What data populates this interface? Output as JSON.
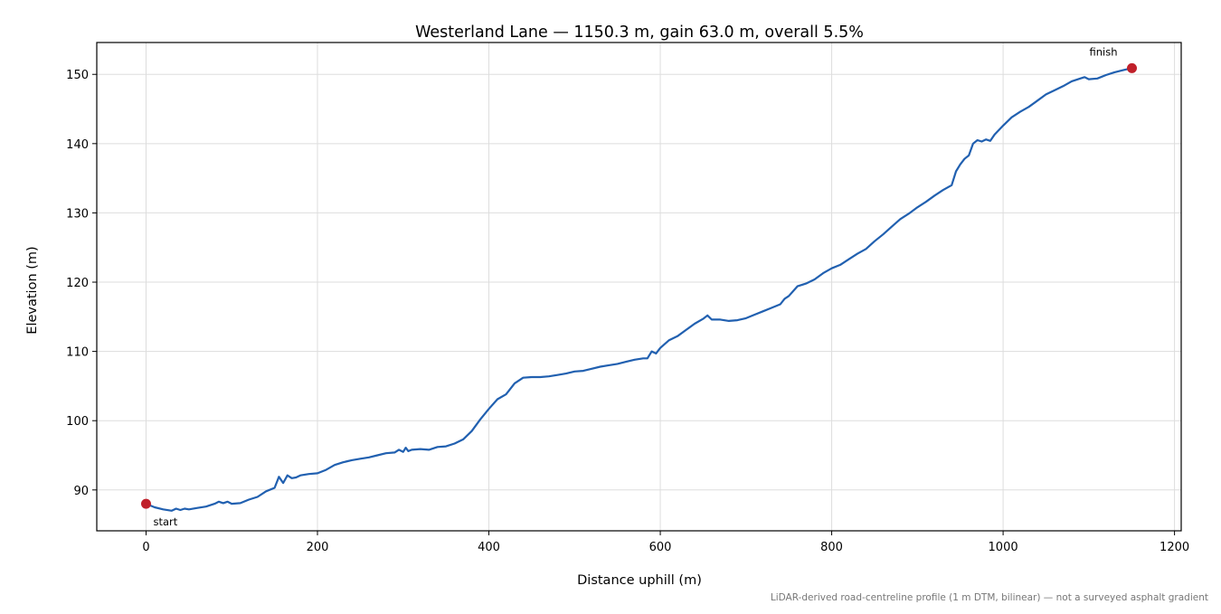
{
  "chart_data": {
    "type": "line",
    "title": "Westerland Lane — 1150.3 m, gain 63.0 m, overall 5.5%",
    "xlabel": "Distance uphill (m)",
    "ylabel": "Elevation (m)",
    "footnote": "LiDAR-derived road-centreline profile (1 m DTM, bilinear) — not a surveyed asphalt gradient",
    "xlim": [
      -57.5,
      1207.8
    ],
    "ylim": [
      84.1,
      154.6
    ],
    "xticks": [
      0,
      200,
      400,
      600,
      800,
      1000,
      1200
    ],
    "yticks": [
      90,
      100,
      110,
      120,
      130,
      140,
      150
    ],
    "xtick_labels": [
      "0",
      "200",
      "400",
      "600",
      "800",
      "1000",
      "1200"
    ],
    "ytick_labels": [
      "90",
      "100",
      "110",
      "120",
      "130",
      "140",
      "150"
    ],
    "grid": true,
    "line_color": "#2160b0",
    "marker_color": "#c0202a",
    "series": [
      {
        "x": [
          0,
          10,
          20,
          30,
          35,
          40,
          45,
          50,
          60,
          70,
          80,
          85,
          90,
          95,
          100,
          110,
          120,
          130,
          140,
          150,
          155,
          160,
          165,
          170,
          175,
          180,
          190,
          200,
          210,
          220,
          230,
          240,
          250,
          260,
          270,
          280,
          290,
          295,
          300,
          303,
          306,
          310,
          320,
          330,
          340,
          350,
          360,
          370,
          380,
          390,
          400,
          410,
          420,
          430,
          440,
          450,
          460,
          470,
          480,
          490,
          500,
          510,
          520,
          530,
          540,
          550,
          560,
          570,
          580,
          585,
          590,
          595,
          600,
          610,
          620,
          630,
          640,
          650,
          655,
          660,
          670,
          680,
          690,
          700,
          710,
          720,
          730,
          740,
          745,
          750,
          755,
          760,
          770,
          780,
          790,
          800,
          810,
          820,
          830,
          840,
          850,
          860,
          870,
          880,
          890,
          900,
          910,
          920,
          930,
          940,
          945,
          950,
          955,
          960,
          965,
          970,
          975,
          980,
          985,
          990,
          1000,
          1010,
          1020,
          1030,
          1040,
          1050,
          1060,
          1070,
          1080,
          1090,
          1095,
          1100,
          1110,
          1120,
          1130,
          1140,
          1150.3
        ],
        "y": [
          88.0,
          87.5,
          87.2,
          87.0,
          87.3,
          87.1,
          87.3,
          87.2,
          87.4,
          87.6,
          88.0,
          88.3,
          88.1,
          88.3,
          88.0,
          88.1,
          88.6,
          89.0,
          89.8,
          90.3,
          91.9,
          91.0,
          92.1,
          91.7,
          91.8,
          92.1,
          92.3,
          92.4,
          92.9,
          93.6,
          94.0,
          94.3,
          94.5,
          94.7,
          95.0,
          95.3,
          95.4,
          95.8,
          95.5,
          96.1,
          95.6,
          95.8,
          95.9,
          95.8,
          96.2,
          96.3,
          96.7,
          97.3,
          98.5,
          100.2,
          101.7,
          103.1,
          103.8,
          105.4,
          106.2,
          106.3,
          106.3,
          106.4,
          106.6,
          106.8,
          107.1,
          107.2,
          107.5,
          107.8,
          108.0,
          108.2,
          108.5,
          108.8,
          109.0,
          109.0,
          110.0,
          109.7,
          110.5,
          111.6,
          112.2,
          113.1,
          114.0,
          114.7,
          115.2,
          114.6,
          114.6,
          114.4,
          114.5,
          114.8,
          115.3,
          115.8,
          116.3,
          116.8,
          117.6,
          118.0,
          118.7,
          119.4,
          119.8,
          120.4,
          121.3,
          122.0,
          122.5,
          123.3,
          124.1,
          124.8,
          125.9,
          126.9,
          128.0,
          129.1,
          129.9,
          130.8,
          131.6,
          132.5,
          133.3,
          134.0,
          136.0,
          137.0,
          137.8,
          138.3,
          140.0,
          140.5,
          140.3,
          140.6,
          140.4,
          141.3,
          142.6,
          143.8,
          144.6,
          145.3,
          146.2,
          147.1,
          147.7,
          148.3,
          149.0,
          149.4,
          149.6,
          149.3,
          149.4,
          149.9,
          150.3,
          150.6,
          150.9
        ]
      }
    ],
    "annotations": [
      {
        "text": "start",
        "x": 0,
        "y": 88.0
      },
      {
        "text": "finish",
        "x": 1150.3,
        "y": 150.9
      }
    ]
  }
}
